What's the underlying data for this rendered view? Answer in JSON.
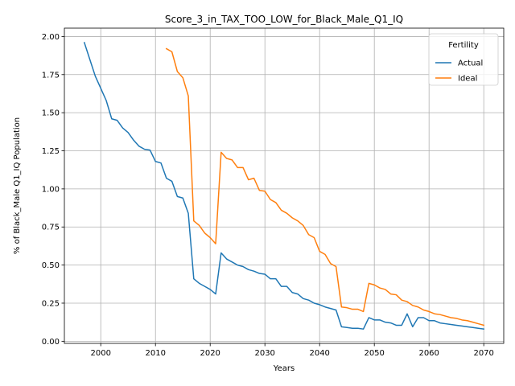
{
  "chart_data": {
    "type": "line",
    "title": "Score_3_in_TAX_TOO_LOW_for_Black_Male_Q1_IQ",
    "xlabel": "Years",
    "ylabel": "% of Black_Male Q1_IQ Population",
    "xlim": [
      1993.35,
      2073.65
    ],
    "ylim": [
      -0.014,
      2.055
    ],
    "xticks": [
      2000,
      2010,
      2020,
      2030,
      2040,
      2050,
      2060,
      2070
    ],
    "yticks": [
      0.0,
      0.25,
      0.5,
      0.75,
      1.0,
      1.25,
      1.5,
      1.75,
      2.0
    ],
    "ytick_labels": [
      "0.00",
      "0.25",
      "0.50",
      "0.75",
      "1.00",
      "1.25",
      "1.50",
      "1.75",
      "2.00"
    ],
    "grid": true,
    "legend": {
      "title": "Fertility",
      "placement": "top-right"
    },
    "series": [
      {
        "name": "Actual",
        "color": "#1f77b4",
        "x": [
          1997,
          1998,
          1999,
          2000,
          2001,
          2002,
          2003,
          2004,
          2005,
          2006,
          2007,
          2008,
          2009,
          2010,
          2011,
          2012,
          2013,
          2014,
          2015,
          2016,
          2017,
          2018,
          2019,
          2020,
          2021,
          2022,
          2023,
          2024,
          2025,
          2026,
          2027,
          2028,
          2029,
          2030,
          2031,
          2032,
          2033,
          2034,
          2035,
          2036,
          2037,
          2038,
          2039,
          2040,
          2041,
          2042,
          2043,
          2044,
          2045,
          2046,
          2047,
          2048,
          2049,
          2050,
          2051,
          2052,
          2053,
          2054,
          2055,
          2056,
          2057,
          2058,
          2059,
          2060,
          2061,
          2062,
          2063,
          2064,
          2065,
          2066,
          2067,
          2068,
          2069,
          2070
        ],
        "values": [
          1.96,
          1.85,
          1.74,
          1.66,
          1.58,
          1.46,
          1.45,
          1.4,
          1.37,
          1.32,
          1.28,
          1.26,
          1.255,
          1.18,
          1.17,
          1.07,
          1.05,
          0.95,
          0.94,
          0.84,
          0.41,
          0.38,
          0.36,
          0.34,
          0.31,
          0.58,
          0.54,
          0.52,
          0.5,
          0.49,
          0.47,
          0.46,
          0.445,
          0.44,
          0.41,
          0.41,
          0.36,
          0.36,
          0.32,
          0.31,
          0.28,
          0.27,
          0.25,
          0.24,
          0.225,
          0.215,
          0.205,
          0.095,
          0.09,
          0.085,
          0.085,
          0.08,
          0.155,
          0.14,
          0.14,
          0.125,
          0.12,
          0.105,
          0.105,
          0.18,
          0.095,
          0.155,
          0.155,
          0.135,
          0.135,
          0.12,
          0.115,
          0.11,
          0.105,
          0.1,
          0.095,
          0.09,
          0.085,
          0.08
        ]
      },
      {
        "name": "Ideal",
        "color": "#ff7f0e",
        "x": [
          2012,
          2013,
          2014,
          2015,
          2016,
          2017,
          2018,
          2019,
          2020,
          2021,
          2022,
          2023,
          2024,
          2025,
          2026,
          2027,
          2028,
          2029,
          2030,
          2031,
          2032,
          2033,
          2034,
          2035,
          2036,
          2037,
          2038,
          2039,
          2040,
          2041,
          2042,
          2043,
          2044,
          2045,
          2046,
          2047,
          2048,
          2049,
          2050,
          2051,
          2052,
          2053,
          2054,
          2055,
          2056,
          2057,
          2058,
          2059,
          2060,
          2061,
          2062,
          2063,
          2064,
          2065,
          2066,
          2067,
          2068,
          2069,
          2070
        ],
        "values": [
          1.92,
          1.9,
          1.77,
          1.73,
          1.61,
          0.79,
          0.76,
          0.71,
          0.68,
          0.64,
          1.24,
          1.2,
          1.19,
          1.14,
          1.14,
          1.06,
          1.07,
          0.99,
          0.985,
          0.93,
          0.91,
          0.86,
          0.84,
          0.81,
          0.79,
          0.76,
          0.7,
          0.68,
          0.59,
          0.57,
          0.51,
          0.49,
          0.225,
          0.22,
          0.21,
          0.21,
          0.195,
          0.38,
          0.37,
          0.35,
          0.34,
          0.31,
          0.305,
          0.27,
          0.26,
          0.235,
          0.225,
          0.205,
          0.195,
          0.18,
          0.175,
          0.165,
          0.155,
          0.15,
          0.14,
          0.135,
          0.125,
          0.115,
          0.105
        ]
      }
    ]
  }
}
